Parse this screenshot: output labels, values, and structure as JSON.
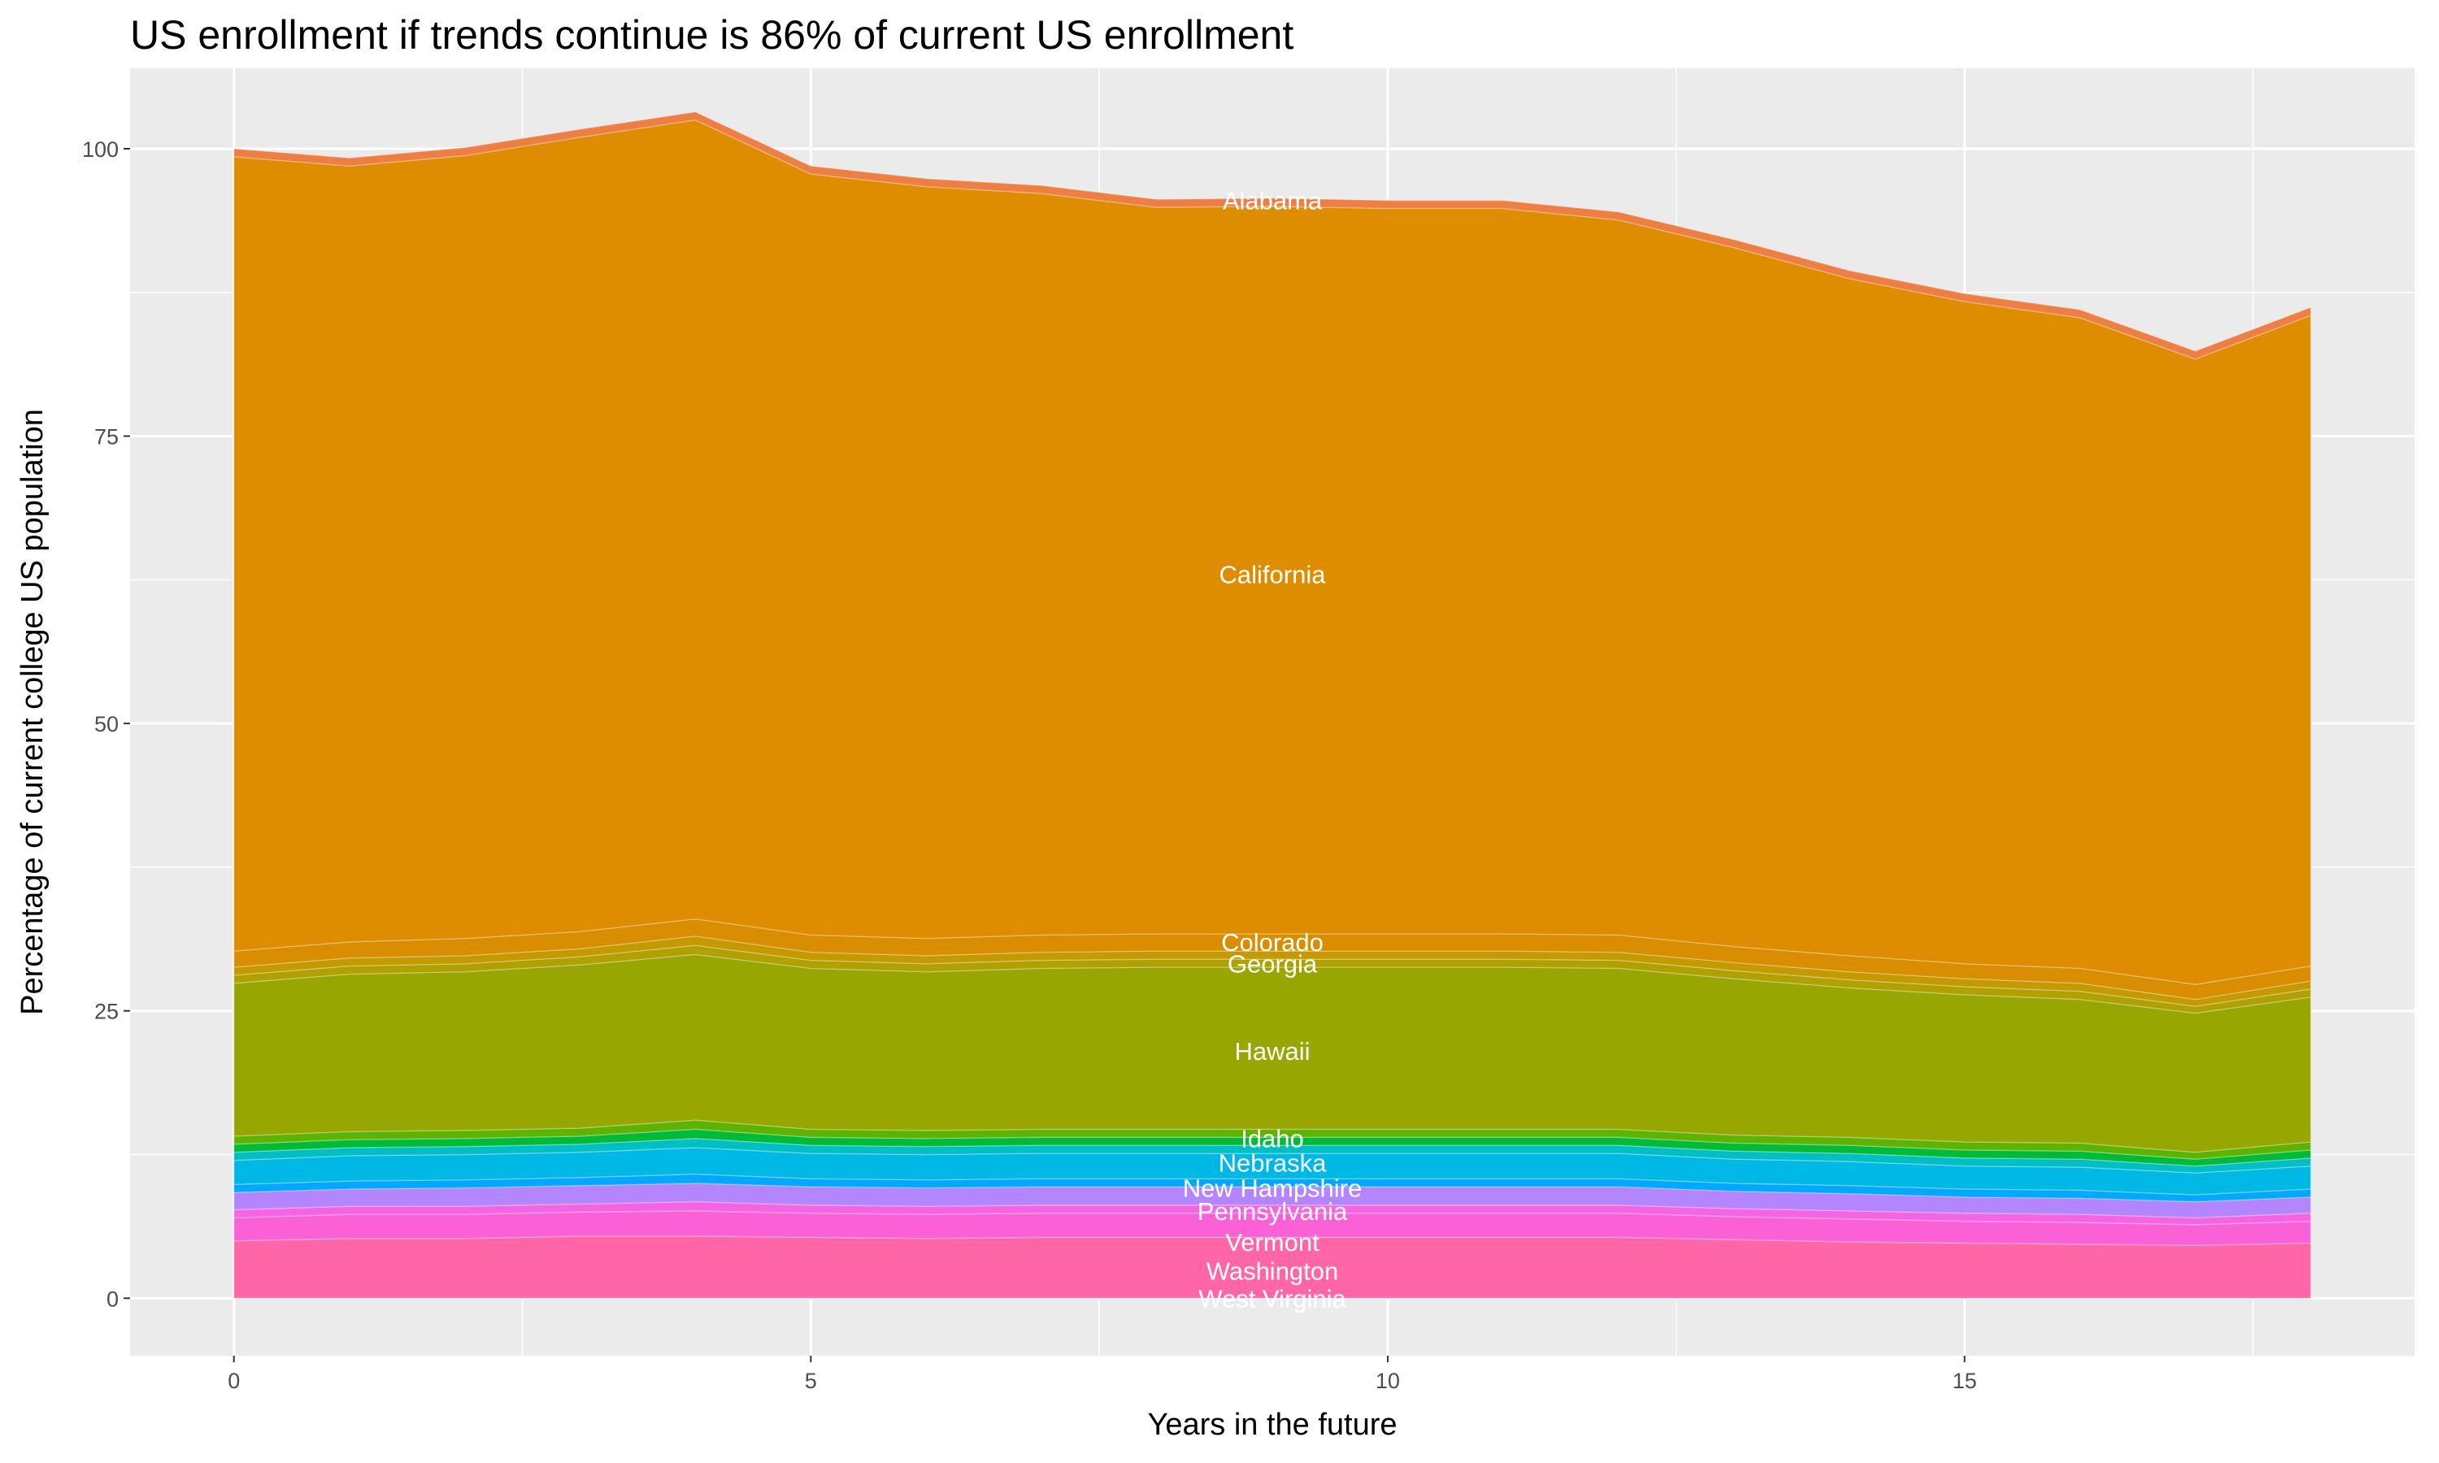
{
  "chart_data": {
    "type": "area",
    "stacked": true,
    "title": "US enrollment if trends continue is 86% of current US enrollment",
    "xlabel": "Years in the future",
    "ylabel": "Percentage of current college US population",
    "xlim": [
      -0.9,
      18.9
    ],
    "ylim": [
      -5,
      107
    ],
    "xticks": [
      0,
      5,
      10,
      15
    ],
    "yticks": [
      0,
      25,
      50,
      75,
      100
    ],
    "grid": true,
    "legend": "none",
    "background": "#EBEBEB",
    "x": [
      0,
      1,
      2,
      3,
      4,
      5,
      6,
      7,
      8,
      9,
      10,
      11,
      12,
      13,
      14,
      15,
      16,
      17,
      18
    ],
    "series": [
      {
        "name": "West Virginia",
        "color": "#FF66A8",
        "values": [
          5.0,
          5.2,
          5.2,
          5.4,
          5.4,
          5.3,
          5.2,
          5.3,
          5.3,
          5.3,
          5.3,
          5.3,
          5.3,
          5.1,
          4.9,
          4.8,
          4.7,
          4.6,
          4.8
        ]
      },
      {
        "name": "Washington",
        "color": "#FB61D7",
        "values": [
          2.0,
          2.1,
          2.1,
          2.1,
          2.2,
          2.1,
          2.1,
          2.1,
          2.1,
          2.1,
          2.1,
          2.1,
          2.1,
          2.0,
          2.0,
          1.9,
          1.9,
          1.8,
          1.9
        ]
      },
      {
        "name": "Vermont",
        "color": "#F564E3",
        "values": [
          0.7,
          0.7,
          0.7,
          0.7,
          0.8,
          0.7,
          0.7,
          0.7,
          0.7,
          0.7,
          0.7,
          0.7,
          0.7,
          0.7,
          0.7,
          0.7,
          0.7,
          0.6,
          0.7
        ]
      },
      {
        "name": "Pennsylvania",
        "color": "#B385FF",
        "values": [
          1.5,
          1.5,
          1.6,
          1.6,
          1.6,
          1.6,
          1.6,
          1.6,
          1.6,
          1.6,
          1.6,
          1.6,
          1.6,
          1.5,
          1.5,
          1.4,
          1.4,
          1.4,
          1.4
        ]
      },
      {
        "name": "",
        "color": "#00A9FF",
        "values": [
          0.7,
          0.7,
          0.7,
          0.7,
          0.8,
          0.7,
          0.7,
          0.7,
          0.7,
          0.7,
          0.7,
          0.7,
          0.7,
          0.7,
          0.7,
          0.7,
          0.7,
          0.6,
          0.7
        ]
      },
      {
        "name": "New Hampshire",
        "color": "#00B8E5",
        "values": [
          2.1,
          2.2,
          2.2,
          2.2,
          2.3,
          2.2,
          2.2,
          2.2,
          2.2,
          2.2,
          2.2,
          2.2,
          2.2,
          2.1,
          2.1,
          2.0,
          2.0,
          1.9,
          2.0
        ]
      },
      {
        "name": "Nebraska",
        "color": "#00BFC4",
        "values": [
          0.7,
          0.7,
          0.7,
          0.7,
          0.8,
          0.7,
          0.7,
          0.7,
          0.7,
          0.7,
          0.7,
          0.7,
          0.7,
          0.7,
          0.7,
          0.7,
          0.7,
          0.6,
          0.7
        ]
      },
      {
        "name": "",
        "color": "#00BA38",
        "values": [
          0.7,
          0.7,
          0.7,
          0.7,
          0.8,
          0.7,
          0.7,
          0.7,
          0.7,
          0.7,
          0.7,
          0.7,
          0.7,
          0.7,
          0.7,
          0.7,
          0.7,
          0.6,
          0.7
        ]
      },
      {
        "name": "Idaho",
        "color": "#5EB300",
        "values": [
          0.7,
          0.7,
          0.7,
          0.7,
          0.8,
          0.7,
          0.7,
          0.7,
          0.7,
          0.7,
          0.7,
          0.7,
          0.7,
          0.7,
          0.7,
          0.7,
          0.7,
          0.6,
          0.7
        ]
      },
      {
        "name": "Hawaii",
        "color": "#97A600",
        "values": [
          13.3,
          13.7,
          13.8,
          14.2,
          14.4,
          14.0,
          13.8,
          14.0,
          14.1,
          14.1,
          14.1,
          14.1,
          14.0,
          13.6,
          13.0,
          12.8,
          12.5,
          12.1,
          12.6
        ]
      },
      {
        "name": "",
        "color": "#B0A000",
        "values": [
          0.7,
          0.7,
          0.7,
          0.7,
          0.8,
          0.7,
          0.7,
          0.7,
          0.7,
          0.7,
          0.7,
          0.7,
          0.7,
          0.7,
          0.7,
          0.7,
          0.7,
          0.6,
          0.7
        ]
      },
      {
        "name": "Georgia",
        "color": "#C49A00",
        "values": [
          0.7,
          0.7,
          0.7,
          0.7,
          0.8,
          0.7,
          0.7,
          0.7,
          0.7,
          0.7,
          0.7,
          0.7,
          0.7,
          0.7,
          0.7,
          0.7,
          0.7,
          0.6,
          0.7
        ]
      },
      {
        "name": "Colorado",
        "color": "#D98D00",
        "values": [
          1.4,
          1.4,
          1.5,
          1.5,
          1.5,
          1.5,
          1.5,
          1.5,
          1.5,
          1.5,
          1.5,
          1.5,
          1.5,
          1.4,
          1.4,
          1.3,
          1.3,
          1.3,
          1.3
        ]
      },
      {
        "name": "California",
        "color": "#DE8C00",
        "values": [
          69.1,
          67.5,
          68.1,
          69.1,
          69.5,
          66.2,
          65.4,
          64.5,
          63.2,
          63.3,
          63.1,
          63.1,
          62.2,
          60.8,
          58.9,
          57.6,
          56.6,
          54.4,
          56.6
        ]
      },
      {
        "name": "Alabama",
        "color": "#ED7F45",
        "values": [
          0.7,
          0.7,
          0.7,
          0.7,
          0.7,
          0.7,
          0.7,
          0.7,
          0.7,
          0.7,
          0.7,
          0.7,
          0.7,
          0.7,
          0.7,
          0.7,
          0.7,
          0.7,
          0.7
        ]
      }
    ],
    "annotations": [
      {
        "text": "Alabama",
        "x": 9,
        "y": 95.5
      },
      {
        "text": "California",
        "x": 9,
        "y": 63
      },
      {
        "text": "Colorado",
        "x": 9,
        "y": 31
      },
      {
        "text": "Georgia",
        "x": 9,
        "y": 29.1
      },
      {
        "text": "Hawaii",
        "x": 9,
        "y": 21.5
      },
      {
        "text": "Idaho",
        "x": 9,
        "y": 13.9
      },
      {
        "text": "Nebraska",
        "x": 9,
        "y": 11.8
      },
      {
        "text": "New Hampshire",
        "x": 9,
        "y": 9.6
      },
      {
        "text": "Pennsylvania",
        "x": 9,
        "y": 7.6
      },
      {
        "text": "Vermont",
        "x": 9,
        "y": 4.9
      },
      {
        "text": "Washington",
        "x": 9,
        "y": 2.4
      },
      {
        "text": "West Virginia",
        "x": 9,
        "y": 0
      }
    ]
  }
}
